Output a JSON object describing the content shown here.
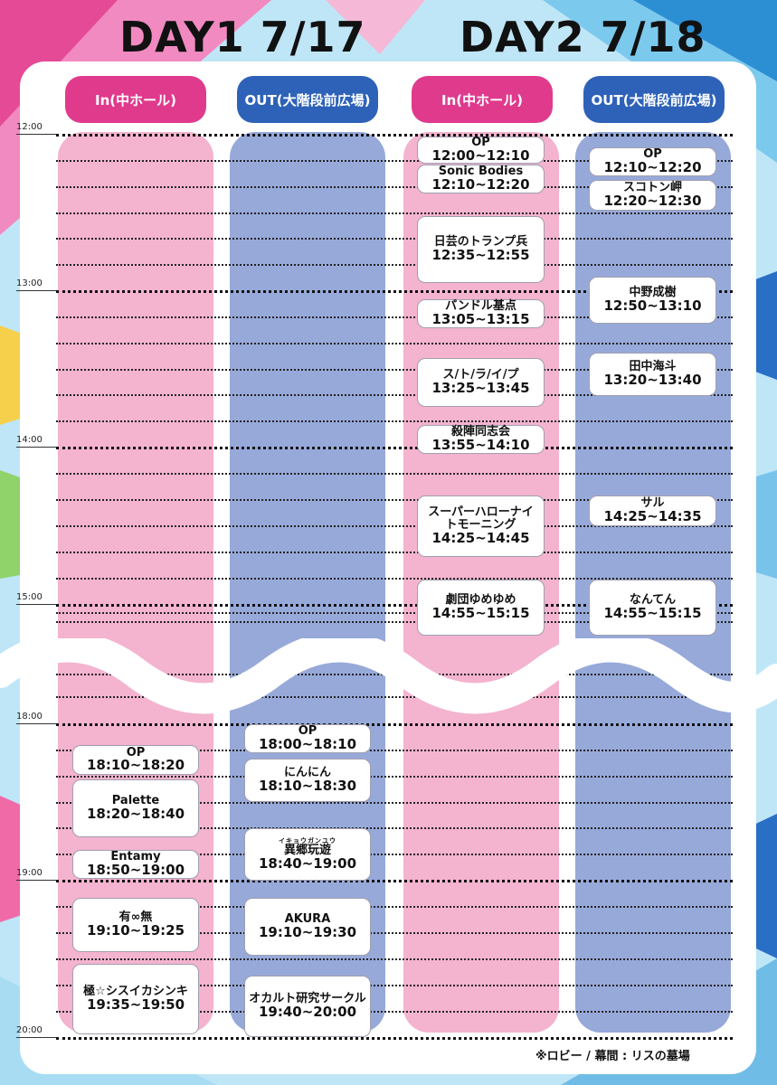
{
  "days": [
    {
      "label": "DAY1 7/17"
    },
    {
      "label": "DAY2 7/18"
    }
  ],
  "stages": {
    "in": "In(中ホール)",
    "out": "OUT(大階段前広場)"
  },
  "time_labels": [
    "12:00",
    "13:00",
    "14:00",
    "15:00",
    "18:00",
    "19:00",
    "20:00"
  ],
  "colors": {
    "in_header": "#e03a8d",
    "out_header": "#2e62b8",
    "in_column": "#f2a9c8",
    "out_column": "#8ea2d6"
  },
  "events": {
    "day1_in": [
      {
        "name": "OP",
        "time": "18:10~18:20"
      },
      {
        "name": "Palette",
        "time": "18:20~18:40"
      },
      {
        "name": "Entamy",
        "time": "18:50~19:00"
      },
      {
        "name": "有∞無",
        "time": "19:10~19:25"
      },
      {
        "name": "極☆シスイカシンキ",
        "time": "19:35~19:50"
      }
    ],
    "day1_out": [
      {
        "name": "OP",
        "time": "18:00~18:10"
      },
      {
        "name": "にんにん",
        "time": "18:10~18:30"
      },
      {
        "name": "異郷玩遊",
        "ruby": "イキョウガンユウ",
        "time": "18:40~19:00"
      },
      {
        "name": "AKURA",
        "time": "19:10~19:30"
      },
      {
        "name": "オカルト研究サークル",
        "time": "19:40~20:00"
      }
    ],
    "day2_in": [
      {
        "name": "OP",
        "time": "12:00~12:10"
      },
      {
        "name": "Sonic Bodies",
        "time": "12:10~12:20"
      },
      {
        "name": "日芸のトランプ兵",
        "time": "12:35~12:55"
      },
      {
        "name": "パンドル基点",
        "time": "13:05~13:15"
      },
      {
        "name": "ス/ト/ラ/イ/プ",
        "time": "13:25~13:45"
      },
      {
        "name": "殺陣同志会",
        "time": "13:55~14:10"
      },
      {
        "name": "スーパーハローナイトモーニング",
        "time": "14:25~14:45"
      },
      {
        "name": "劇団ゆめゆめ",
        "time": "14:55~15:15"
      }
    ],
    "day2_out": [
      {
        "name": "OP",
        "time": "12:10~12:20"
      },
      {
        "name": "スコトン岬",
        "time": "12:20~12:30"
      },
      {
        "name": "中野成樹",
        "time": "12:50~13:10"
      },
      {
        "name": "田中海斗",
        "time": "13:20~13:40"
      },
      {
        "name": "サル",
        "time": "14:25~14:35"
      },
      {
        "name": "なんてん",
        "time": "14:55~15:15"
      }
    ]
  },
  "footer_note": "※ロビー / 幕間 : リスの墓場"
}
